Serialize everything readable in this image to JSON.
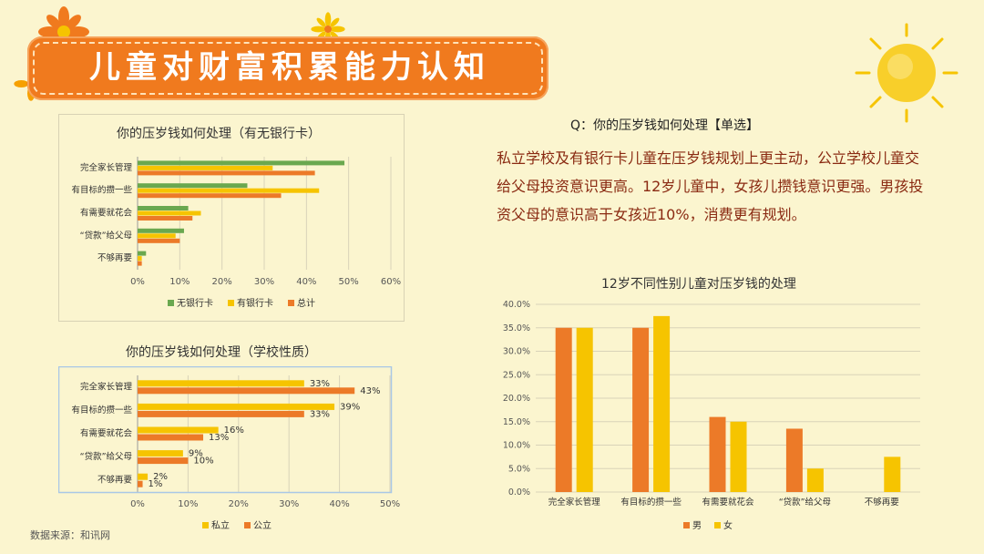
{
  "header": {
    "title": "儿童对财富积累能力认知"
  },
  "question": "Q：你的压岁钱如何处理【单选】",
  "summary": "私立学校及有银行卡儿童在压岁钱规划上更主动，公立学校儿童交给父母投资意识更高。12岁儿童中，女孩儿攒钱意识更强。男孩投资父母的意识高于女孩近10%，消费更有规划。",
  "source": "数据来源：和讯网",
  "colors": {
    "green": "#6aa84f",
    "yellow": "#f6c400",
    "orange": "#ec7a28",
    "banner": "#f07a1e"
  },
  "chart_data": [
    {
      "type": "bar",
      "orientation": "horizontal",
      "title": "你的压岁钱如何处理（有无银行卡）",
      "categories": [
        "完全家长管理",
        "有目标的攒一些",
        "有需要就花会",
        "“贷款”给父母",
        "不够再要"
      ],
      "series": [
        {
          "name": "无银行卡",
          "color": "#6aa84f",
          "values": [
            49,
            26,
            12,
            11,
            2
          ]
        },
        {
          "name": "有银行卡",
          "color": "#f6c400",
          "values": [
            32,
            43,
            15,
            9,
            1
          ]
        },
        {
          "name": "总计",
          "color": "#ec7a28",
          "values": [
            42,
            34,
            13,
            10,
            1
          ]
        }
      ],
      "xlim": [
        0,
        60
      ],
      "ticks": [
        "0%",
        "10%",
        "20%",
        "30%",
        "40%",
        "50%",
        "60%"
      ],
      "legend": "bottom"
    },
    {
      "type": "bar",
      "orientation": "horizontal",
      "title": "你的压岁钱如何处理（学校性质）",
      "categories": [
        "完全家长管理",
        "有目标的攒一些",
        "有需要就花会",
        "“贷款”给父母",
        "不够再要"
      ],
      "series": [
        {
          "name": "私立",
          "color": "#f6c400",
          "values": [
            33,
            39,
            16,
            9,
            2
          ],
          "labels": [
            "33%",
            "39%",
            "16%",
            "9%",
            "2%"
          ]
        },
        {
          "name": "公立",
          "color": "#ec7a28",
          "values": [
            43,
            33,
            13,
            10,
            1
          ],
          "labels": [
            "43%",
            "33%",
            "13%",
            "10%",
            "1%"
          ]
        }
      ],
      "xlim": [
        0,
        50
      ],
      "ticks": [
        "0%",
        "10%",
        "20%",
        "30%",
        "40%",
        "50%"
      ],
      "legend": "bottom"
    },
    {
      "type": "bar",
      "orientation": "vertical",
      "title": "12岁不同性别儿童对压岁钱的处理",
      "categories": [
        "完全家长管理",
        "有目标的攒一些",
        "有需要就花会",
        "“贷款”给父母",
        "不够再要"
      ],
      "series": [
        {
          "name": "男",
          "color": "#ec7a28",
          "values": [
            35.0,
            35.0,
            16.0,
            13.5,
            0
          ]
        },
        {
          "name": "女",
          "color": "#f6c400",
          "values": [
            35.0,
            37.5,
            15.0,
            5.0,
            7.5
          ]
        }
      ],
      "ylim": [
        0,
        40
      ],
      "ticks": [
        "0.0%",
        "5.0%",
        "10.0%",
        "15.0%",
        "20.0%",
        "25.0%",
        "30.0%",
        "35.0%",
        "40.0%"
      ],
      "legend": "bottom"
    }
  ]
}
